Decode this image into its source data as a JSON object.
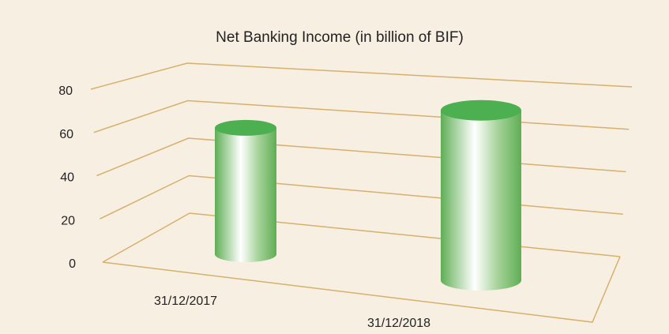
{
  "chart_data": {
    "type": "bar3d",
    "title": "Net Banking Income (in billion of BIF)",
    "categories": [
      "31/12/2017",
      "31/12/2018"
    ],
    "values": [
      58,
      75
    ],
    "color": "#4caf50",
    "ylim": [
      0,
      80
    ],
    "yticks": [
      0,
      20,
      40,
      60,
      80
    ],
    "grid": true
  }
}
